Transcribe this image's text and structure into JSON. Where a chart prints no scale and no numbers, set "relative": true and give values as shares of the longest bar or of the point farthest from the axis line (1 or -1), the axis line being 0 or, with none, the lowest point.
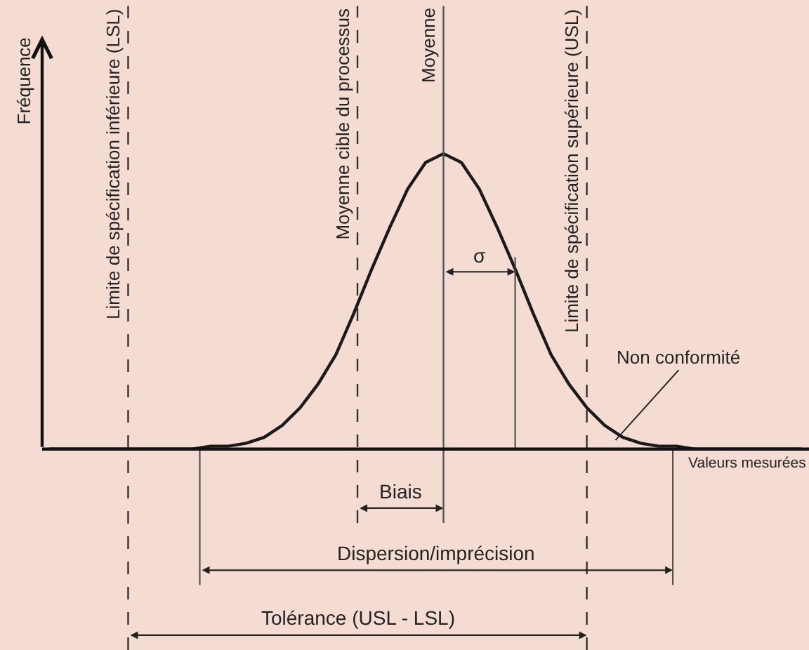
{
  "chart_data": {
    "type": "line",
    "relative": true,
    "ylabel": "Fréquence",
    "xlabel": "Valeurs mesurées",
    "marker": "none",
    "line_style": "solid",
    "categories": [
      null,
      null,
      null,
      null,
      null,
      null,
      null,
      null,
      null,
      null,
      null,
      null,
      null,
      null,
      null,
      null,
      null,
      null,
      null,
      null,
      null,
      null,
      null,
      null,
      null,
      null,
      null,
      null,
      null,
      null,
      null,
      null,
      null,
      null,
      null,
      null,
      null,
      null,
      null,
      null,
      null,
      null,
      null
    ],
    "series": [
      {
        "color": "#1a1a1a",
        "values": [
          0,
          0,
          0,
          0,
          0,
          0,
          0,
          0,
          0,
          0.01,
          0.01,
          0.02,
          0.04,
          0.08,
          0.14,
          0.22,
          0.32,
          0.46,
          0.61,
          0.75,
          0.88,
          0.97,
          1,
          0.97,
          0.88,
          0.75,
          0.61,
          0.46,
          0.32,
          0.22,
          0.14,
          0.08,
          0.04,
          0.02,
          0.01,
          0.01,
          0,
          0,
          0,
          0,
          0,
          0,
          0
        ]
      }
    ],
    "annotations": [
      "Limite de spécification inférieure (LSL)",
      "Moyenne cible du processus",
      "Moyenne",
      "Limite de spécification supérieure (USL)",
      "σ",
      "Biais",
      "Dispersion/imprécision",
      "Tolérance (USL - LSL)",
      "Non conformité"
    ]
  }
}
